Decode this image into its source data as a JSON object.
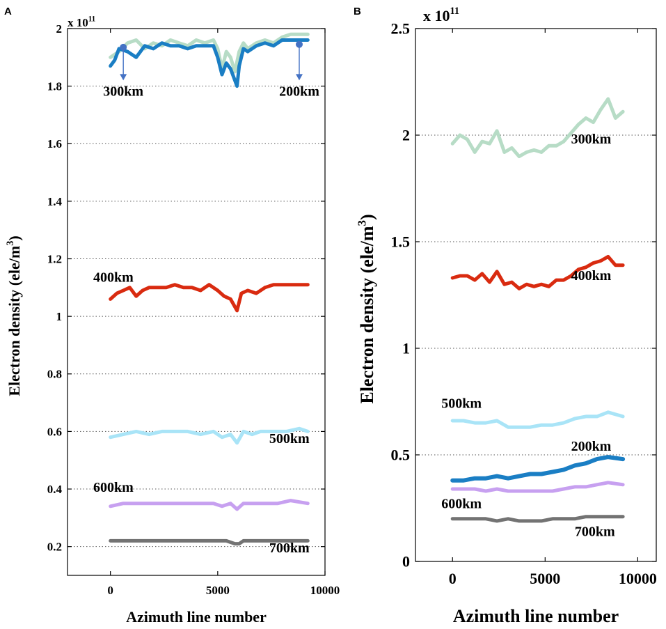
{
  "chart_data": [
    {
      "panel": "A",
      "type": "line",
      "xlim": [
        -2000,
        10000
      ],
      "ylim": [
        0.1,
        2.0
      ],
      "xticks": [
        0,
        5000,
        10000
      ],
      "yticks": [
        0.2,
        0.4,
        0.6,
        0.8,
        1,
        1.2,
        1.4,
        1.6,
        1.8,
        2
      ],
      "xtick_labels": [
        "0",
        "5000",
        "10000"
      ],
      "ytick_labels": [
        "0.2",
        "0.4",
        "0.6",
        "0.8",
        "1",
        "1.2",
        "1.4",
        "1.6",
        "1.8",
        "2"
      ],
      "exponent": "x 10",
      "exponent_power": "11",
      "xlabel": "Azimuth line number",
      "ylabel": "Electron density (ele/m",
      "ylabel_sup": "3",
      "ylabel_close": ")",
      "grid": "horizontal dotted",
      "annotations": [
        {
          "text": "300km",
          "arrow_from": [
            600,
            1.935
          ],
          "arrow_to": [
            600,
            1.82
          ],
          "color": "#4472c4"
        },
        {
          "text": "200km",
          "arrow_from": [
            8800,
            1.945
          ],
          "arrow_to": [
            8800,
            1.82
          ],
          "color": "#4472c4"
        }
      ],
      "series": [
        {
          "name": "300km",
          "color": "#b7dcc6",
          "width": 5,
          "x": [
            0,
            400,
            800,
            1200,
            1600,
            2000,
            2400,
            2800,
            3200,
            3600,
            4000,
            4400,
            4800,
            5000,
            5200,
            5400,
            5600,
            5800,
            6000,
            6200,
            6400,
            6800,
            7200,
            7600,
            8000,
            8400,
            8800,
            9200
          ],
          "y": [
            1.9,
            1.92,
            1.95,
            1.96,
            1.93,
            1.95,
            1.94,
            1.96,
            1.95,
            1.94,
            1.96,
            1.95,
            1.96,
            1.93,
            1.86,
            1.92,
            1.9,
            1.85,
            1.92,
            1.95,
            1.93,
            1.95,
            1.96,
            1.95,
            1.97,
            1.98,
            1.98,
            1.98
          ]
        },
        {
          "name": "200km",
          "color": "#1a7ec4",
          "width": 5,
          "x": [
            0,
            200,
            400,
            800,
            1200,
            1600,
            2000,
            2400,
            2800,
            3200,
            3600,
            4000,
            4400,
            4800,
            5000,
            5200,
            5400,
            5600,
            5800,
            5900,
            6000,
            6200,
            6400,
            6800,
            7200,
            7600,
            8000,
            8400,
            8800,
            9200
          ],
          "y": [
            1.87,
            1.89,
            1.93,
            1.92,
            1.9,
            1.94,
            1.93,
            1.95,
            1.94,
            1.94,
            1.93,
            1.94,
            1.94,
            1.94,
            1.9,
            1.84,
            1.88,
            1.86,
            1.82,
            1.8,
            1.87,
            1.93,
            1.92,
            1.94,
            1.95,
            1.94,
            1.96,
            1.96,
            1.96,
            1.96
          ]
        },
        {
          "name": "400km",
          "color": "#d92b10",
          "width": 5,
          "x": [
            0,
            300,
            600,
            900,
            1200,
            1500,
            1800,
            2200,
            2600,
            3000,
            3400,
            3800,
            4200,
            4600,
            5000,
            5300,
            5600,
            5900,
            6100,
            6400,
            6800,
            7200,
            7600,
            8000,
            8400,
            8800,
            9200
          ],
          "y": [
            1.06,
            1.08,
            1.09,
            1.1,
            1.07,
            1.09,
            1.1,
            1.1,
            1.1,
            1.11,
            1.1,
            1.1,
            1.09,
            1.11,
            1.09,
            1.07,
            1.06,
            1.02,
            1.08,
            1.09,
            1.08,
            1.1,
            1.11,
            1.11,
            1.11,
            1.11,
            1.11
          ]
        },
        {
          "name": "500km",
          "color": "#a9e4f7",
          "width": 5,
          "x": [
            0,
            600,
            1200,
            1800,
            2400,
            3000,
            3600,
            4200,
            4800,
            5200,
            5600,
            5900,
            6200,
            6600,
            7000,
            7600,
            8200,
            8800,
            9200
          ],
          "y": [
            0.58,
            0.59,
            0.6,
            0.59,
            0.6,
            0.6,
            0.6,
            0.59,
            0.6,
            0.58,
            0.59,
            0.56,
            0.6,
            0.59,
            0.6,
            0.6,
            0.6,
            0.61,
            0.6
          ]
        },
        {
          "name": "600km",
          "color": "#c7a0f0",
          "width": 5,
          "x": [
            0,
            600,
            1200,
            1800,
            2400,
            3000,
            3600,
            4200,
            4800,
            5200,
            5600,
            5900,
            6200,
            6600,
            7200,
            7800,
            8400,
            9200
          ],
          "y": [
            0.34,
            0.35,
            0.35,
            0.35,
            0.35,
            0.35,
            0.35,
            0.35,
            0.35,
            0.34,
            0.35,
            0.33,
            0.35,
            0.35,
            0.35,
            0.35,
            0.36,
            0.35
          ]
        },
        {
          "name": "700km",
          "color": "#737373",
          "width": 5,
          "x": [
            0,
            600,
            1200,
            1800,
            2400,
            3000,
            3600,
            4200,
            4800,
            5400,
            5800,
            6000,
            6200,
            6600,
            7200,
            7800,
            8400,
            9200
          ],
          "y": [
            0.22,
            0.22,
            0.22,
            0.22,
            0.22,
            0.22,
            0.22,
            0.22,
            0.22,
            0.22,
            0.21,
            0.21,
            0.22,
            0.22,
            0.22,
            0.22,
            0.22,
            0.22
          ]
        }
      ],
      "labels": [
        {
          "text": "400km",
          "x": -800,
          "y": 1.12
        },
        {
          "text": "500km",
          "x": 7400,
          "y": 0.56
        },
        {
          "text": "600km",
          "x": -800,
          "y": 0.39
        },
        {
          "text": "700km",
          "x": 7400,
          "y": 0.18
        }
      ]
    },
    {
      "panel": "B",
      "type": "line",
      "xlim": [
        -2000,
        11000
      ],
      "ylim": [
        0,
        2.5
      ],
      "xticks": [
        0,
        5000,
        10000
      ],
      "yticks": [
        0,
        0.5,
        1,
        1.5,
        2,
        2.5
      ],
      "xtick_labels": [
        "0",
        "5000",
        "10000"
      ],
      "ytick_labels": [
        "0",
        "0.5",
        "1",
        "1.5",
        "2",
        "2.5"
      ],
      "exponent": "x 10",
      "exponent_power": "11",
      "xlabel": "Azimuth line number",
      "ylabel": "Electron density (ele/m",
      "ylabel_sup": "3",
      "ylabel_close": ")",
      "grid": "horizontal dotted",
      "series": [
        {
          "name": "300km",
          "color": "#b7dcc6",
          "width": 5,
          "x": [
            0,
            400,
            800,
            1200,
            1600,
            2000,
            2400,
            2800,
            3200,
            3600,
            4000,
            4400,
            4800,
            5200,
            5600,
            6000,
            6400,
            6800,
            7200,
            7600,
            8000,
            8400,
            8800,
            9200
          ],
          "y": [
            1.96,
            2.0,
            1.98,
            1.92,
            1.97,
            1.96,
            2.02,
            1.92,
            1.94,
            1.9,
            1.92,
            1.93,
            1.92,
            1.95,
            1.95,
            1.97,
            2.01,
            2.05,
            2.08,
            2.06,
            2.12,
            2.17,
            2.08,
            2.11
          ]
        },
        {
          "name": "400km",
          "color": "#d92b10",
          "width": 5,
          "x": [
            0,
            400,
            800,
            1200,
            1600,
            2000,
            2400,
            2800,
            3200,
            3600,
            4000,
            4400,
            4800,
            5200,
            5600,
            6000,
            6400,
            6800,
            7200,
            7600,
            8000,
            8400,
            8800,
            9200
          ],
          "y": [
            1.33,
            1.34,
            1.34,
            1.32,
            1.35,
            1.31,
            1.36,
            1.3,
            1.31,
            1.28,
            1.3,
            1.29,
            1.3,
            1.29,
            1.32,
            1.32,
            1.34,
            1.37,
            1.38,
            1.4,
            1.41,
            1.43,
            1.39,
            1.39
          ]
        },
        {
          "name": "500km",
          "color": "#a9e4f7",
          "width": 5,
          "x": [
            0,
            600,
            1200,
            1800,
            2400,
            3000,
            3600,
            4200,
            4800,
            5400,
            6000,
            6600,
            7200,
            7800,
            8400,
            9200
          ],
          "y": [
            0.66,
            0.66,
            0.65,
            0.65,
            0.66,
            0.63,
            0.63,
            0.63,
            0.64,
            0.64,
            0.65,
            0.67,
            0.68,
            0.68,
            0.7,
            0.68
          ]
        },
        {
          "name": "200km",
          "color": "#1a7ec4",
          "width": 6,
          "x": [
            0,
            600,
            1200,
            1800,
            2400,
            3000,
            3600,
            4200,
            4800,
            5400,
            6000,
            6600,
            7200,
            7800,
            8400,
            9200
          ],
          "y": [
            0.38,
            0.38,
            0.39,
            0.39,
            0.4,
            0.39,
            0.4,
            0.41,
            0.41,
            0.42,
            0.43,
            0.45,
            0.46,
            0.48,
            0.49,
            0.48
          ]
        },
        {
          "name": "600km",
          "color": "#c7a0f0",
          "width": 5,
          "x": [
            0,
            600,
            1200,
            1800,
            2400,
            3000,
            3600,
            4200,
            4800,
            5400,
            6000,
            6600,
            7200,
            7800,
            8400,
            9200
          ],
          "y": [
            0.34,
            0.34,
            0.34,
            0.33,
            0.34,
            0.33,
            0.33,
            0.33,
            0.33,
            0.33,
            0.34,
            0.35,
            0.35,
            0.36,
            0.37,
            0.36
          ]
        },
        {
          "name": "700km",
          "color": "#737373",
          "width": 5,
          "x": [
            0,
            600,
            1200,
            1800,
            2400,
            3000,
            3600,
            4200,
            4800,
            5400,
            6000,
            6600,
            7200,
            7800,
            8400,
            9200
          ],
          "y": [
            0.2,
            0.2,
            0.2,
            0.2,
            0.19,
            0.2,
            0.19,
            0.19,
            0.19,
            0.2,
            0.2,
            0.2,
            0.21,
            0.21,
            0.21,
            0.21
          ]
        }
      ],
      "labels": [
        {
          "text": "300km",
          "x": 6400,
          "y": 1.96
        },
        {
          "text": "400km",
          "x": 6400,
          "y": 1.32
        },
        {
          "text": "500km",
          "x": -600,
          "y": 0.72
        },
        {
          "text": "200km",
          "x": 6400,
          "y": 0.52
        },
        {
          "text": "600km",
          "x": -600,
          "y": 0.25
        },
        {
          "text": "700km",
          "x": 6600,
          "y": 0.12
        }
      ]
    }
  ]
}
